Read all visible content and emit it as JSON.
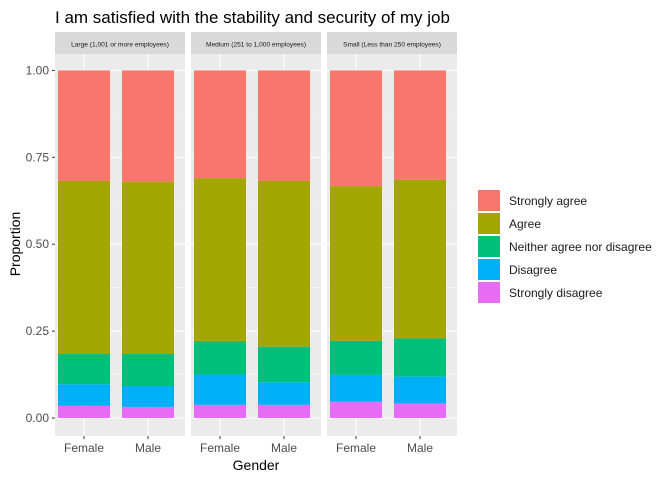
{
  "chart_data": {
    "type": "bar",
    "stacked": true,
    "title": "I am satisfied with the stability and security of my job",
    "xlabel": "Gender",
    "ylabel": "Proportion",
    "ylim": [
      0,
      1
    ],
    "yticks": [
      "0.00",
      "0.25",
      "0.50",
      "0.75",
      "1.00"
    ],
    "grid": true,
    "legend_position": "right",
    "categories": [
      "Female",
      "Male"
    ],
    "levels": [
      "Strongly disagree",
      "Disagree",
      "Neither agree nor disagree",
      "Agree",
      "Strongly agree"
    ],
    "legend_order": [
      "Strongly agree",
      "Agree",
      "Neither agree nor disagree",
      "Disagree",
      "Strongly disagree"
    ],
    "colors": {
      "Strongly agree": "#F8766D",
      "Agree": "#A3A500",
      "Neither agree nor disagree": "#00BF7D",
      "Disagree": "#00B0F6",
      "Strongly disagree": "#E76BF3"
    },
    "panels": [
      {
        "title": "Large (1,001 or more employees)",
        "series": [
          {
            "name": "Strongly disagree",
            "values": [
              0.035,
              0.032
            ]
          },
          {
            "name": "Disagree",
            "values": [
              0.062,
              0.06
            ]
          },
          {
            "name": "Neither agree nor disagree",
            "values": [
              0.087,
              0.092
            ]
          },
          {
            "name": "Agree",
            "values": [
              0.498,
              0.496
            ]
          },
          {
            "name": "Strongly agree",
            "values": [
              0.318,
              0.32
            ]
          }
        ]
      },
      {
        "title": "Medium (251 to 1,000 employees)",
        "series": [
          {
            "name": "Strongly disagree",
            "values": [
              0.038,
              0.038
            ]
          },
          {
            "name": "Disagree",
            "values": [
              0.087,
              0.065
            ]
          },
          {
            "name": "Neither agree nor disagree",
            "values": [
              0.095,
              0.102
            ]
          },
          {
            "name": "Agree",
            "values": [
              0.47,
              0.477
            ]
          },
          {
            "name": "Strongly agree",
            "values": [
              0.31,
              0.318
            ]
          }
        ]
      },
      {
        "title": "Small (Less than 250 employees)",
        "series": [
          {
            "name": "Strongly disagree",
            "values": [
              0.047,
              0.042
            ]
          },
          {
            "name": "Disagree",
            "values": [
              0.077,
              0.077
            ]
          },
          {
            "name": "Neither agree nor disagree",
            "values": [
              0.098,
              0.11
            ]
          },
          {
            "name": "Agree",
            "values": [
              0.445,
              0.456
            ]
          },
          {
            "name": "Strongly agree",
            "values": [
              0.333,
              0.315
            ]
          }
        ]
      }
    ]
  }
}
